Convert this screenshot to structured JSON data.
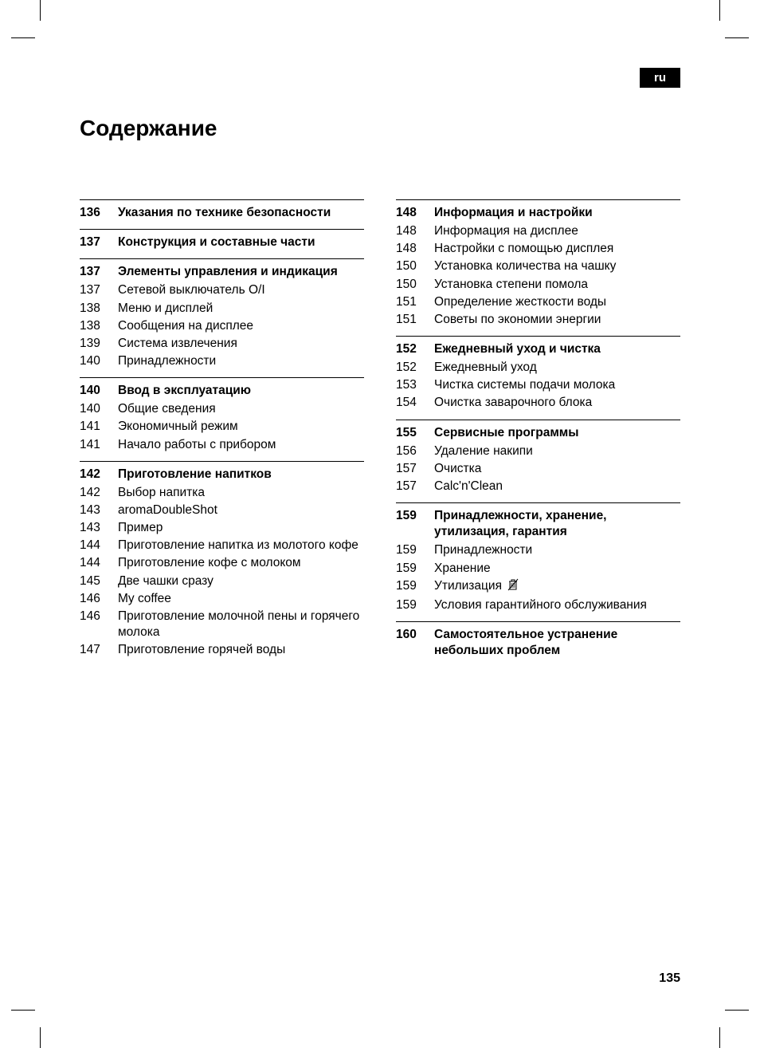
{
  "lang_badge": "ru",
  "title": "Содержание",
  "page_number": "135",
  "left_column": [
    {
      "heading": {
        "page": "136",
        "text": "Указания по технике безопасности"
      },
      "items": []
    },
    {
      "heading": {
        "page": "137",
        "text": "Конструкция и составные части"
      },
      "items": []
    },
    {
      "heading": {
        "page": "137",
        "text": "Элементы управления и индикация"
      },
      "items": [
        {
          "page": "137",
          "text": "Сетевой выключатель O/I"
        },
        {
          "page": "138",
          "text": "Меню и дисплей"
        },
        {
          "page": "138",
          "text": "Сообщения на дисплее"
        },
        {
          "page": "139",
          "text": "Система извлечения"
        },
        {
          "page": "140",
          "text": "Принадлежности"
        }
      ]
    },
    {
      "heading": {
        "page": "140",
        "text": "Ввод в эксплуатацию"
      },
      "items": [
        {
          "page": "140",
          "text": "Общие сведения"
        },
        {
          "page": "141",
          "text": "Экономичный режим"
        },
        {
          "page": "141",
          "text": "Начало работы с прибором"
        }
      ]
    },
    {
      "heading": {
        "page": "142",
        "text": "Приготовление напитков"
      },
      "items": [
        {
          "page": "142",
          "text": "Выбор напитка"
        },
        {
          "page": "143",
          "text": "aromaDoubleShot"
        },
        {
          "page": "143",
          "text": "Пример"
        },
        {
          "page": "144",
          "text": "Приготовление напитка из молотого кофе"
        },
        {
          "page": "144",
          "text": "Приготовление кофе с молоком"
        },
        {
          "page": "145",
          "text": "Две чашки сразу"
        },
        {
          "page": "146",
          "text": "My coffee"
        },
        {
          "page": "146",
          "text": "Приготовление молочной пены и горячего молока"
        },
        {
          "page": "147",
          "text": "Приготовление горячей воды"
        }
      ]
    }
  ],
  "right_column": [
    {
      "heading": {
        "page": "148",
        "text": "Информация и настройки"
      },
      "items": [
        {
          "page": "148",
          "text": "Информация на дисплее"
        },
        {
          "page": "148",
          "text": "Настройки с помощью дисплея"
        },
        {
          "page": "150",
          "text": "Установка количества на чашку"
        },
        {
          "page": "150",
          "text": "Установка степени помола"
        },
        {
          "page": "151",
          "text": "Определение жесткости воды"
        },
        {
          "page": "151",
          "text": "Советы по экономии энергии"
        }
      ]
    },
    {
      "heading": {
        "page": "152",
        "text": "Ежедневный уход и чистка"
      },
      "items": [
        {
          "page": "152",
          "text": "Ежедневный уход"
        },
        {
          "page": "153",
          "text": "Чистка системы подачи молока"
        },
        {
          "page": "154",
          "text": "Очистка заварочного блока"
        }
      ]
    },
    {
      "heading": {
        "page": "155",
        "text": "Сервисные программы"
      },
      "items": [
        {
          "page": "156",
          "text": "Удаление накипи"
        },
        {
          "page": "157",
          "text": "Очистка"
        },
        {
          "page": "157",
          "text": "Calc'n'Clean"
        }
      ]
    },
    {
      "heading": {
        "page": "159",
        "text": "Принадлежности, хранение, утилизация, гарантия"
      },
      "items": [
        {
          "page": "159",
          "text": "Принадлежности"
        },
        {
          "page": "159",
          "text": "Хранение"
        },
        {
          "page": "159",
          "text": "Утилизация",
          "icon": "disposal"
        },
        {
          "page": "159",
          "text": "Условия гарантийного обслуживания"
        }
      ]
    },
    {
      "heading": {
        "page": "160",
        "text": "Самостоятельное устранение небольших проблем"
      },
      "items": []
    }
  ]
}
